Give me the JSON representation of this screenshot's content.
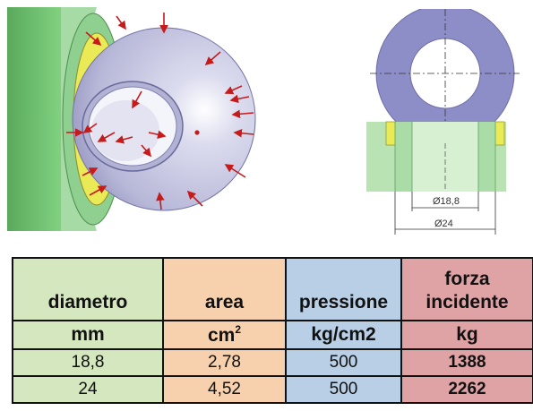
{
  "drawing": {
    "dim_inner": "Ø18,8",
    "dim_outer": "Ø24",
    "colors": {
      "pipe_green": "#6dbf6f",
      "seal_yellow": "#e9ea55",
      "ball_lavender": "#c9c9e6",
      "ring_purple": "#8d8dc7",
      "arrow_red": "#c51b1b"
    }
  },
  "table": {
    "headers": [
      [
        "diametro"
      ],
      [
        "area"
      ],
      [
        "pressione"
      ],
      [
        "forza",
        "incidente"
      ]
    ],
    "units": {
      "diametro": "mm",
      "area_base": "cm",
      "area_exp": "2",
      "pressione": "kg/cm2",
      "forza": "kg"
    },
    "rows": [
      [
        "18,8",
        "2,78",
        "500",
        "1388"
      ],
      [
        "24",
        "4,52",
        "500",
        "2262"
      ]
    ]
  }
}
